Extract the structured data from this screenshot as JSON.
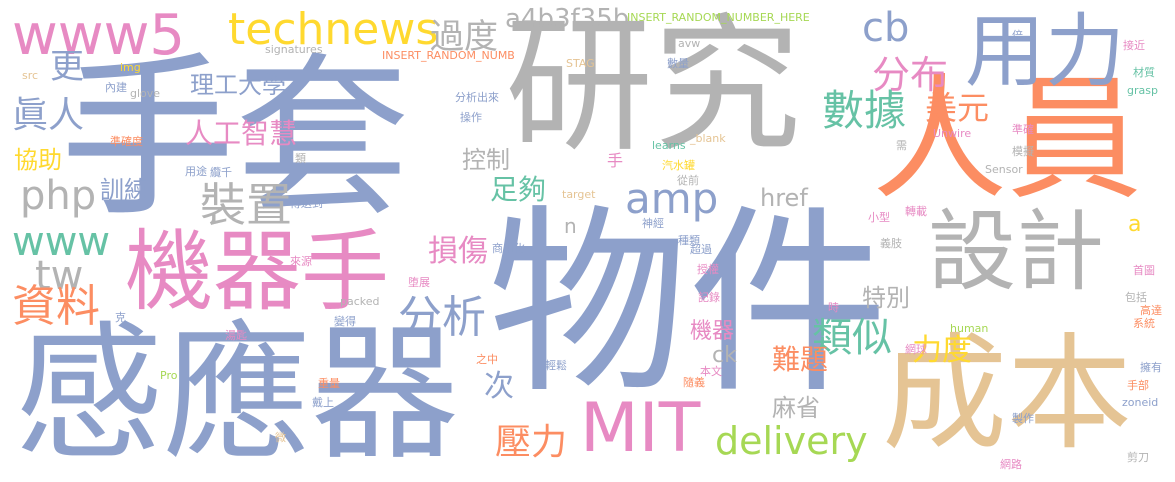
{
  "words": [
    {
      "text": "手套",
      "color": "#8da0cb"
    },
    {
      "text": "研究",
      "color": "#b3b3b3"
    },
    {
      "text": "物件",
      "color": "#8da0cb"
    },
    {
      "text": "感應器",
      "color": "#8da0cb"
    },
    {
      "text": "人員",
      "color": "#fc8d62"
    },
    {
      "text": "成本",
      "color": "#e5c494"
    },
    {
      "text": "機器手",
      "color": "#e78ac3"
    },
    {
      "text": "設計",
      "color": "#b3b3b3"
    },
    {
      "text": "用力",
      "color": "#8da0cb"
    },
    {
      "text": "www5",
      "color": "#e78ac3"
    },
    {
      "text": "technews",
      "color": "#ffd92f"
    },
    {
      "text": "MIT",
      "color": "#e78ac3"
    },
    {
      "text": "delivery",
      "color": "#a6d854"
    },
    {
      "text": "amp",
      "color": "#8da0cb"
    },
    {
      "text": "php",
      "color": "#b3b3b3"
    },
    {
      "text": "www",
      "color": "#66c2a5"
    },
    {
      "text": "tw",
      "color": "#b3b3b3"
    },
    {
      "text": "cb",
      "color": "#8da0cb"
    },
    {
      "text": "a4b3f35b",
      "color": "#b3b3b3"
    },
    {
      "text": "過度",
      "color": "#b3b3b3"
    },
    {
      "text": "分布",
      "color": "#e78ac3"
    },
    {
      "text": "數據",
      "color": "#66c2a5"
    },
    {
      "text": "美元",
      "color": "#fc8d62"
    },
    {
      "text": "理工大學",
      "color": "#8da0cb"
    },
    {
      "text": "人工智慧",
      "color": "#e78ac3"
    },
    {
      "text": "裝置",
      "color": "#b3b3b3"
    },
    {
      "text": "資料",
      "color": "#fc8d62"
    },
    {
      "text": "更",
      "color": "#8da0cb"
    },
    {
      "text": "眞人",
      "color": "#8da0cb"
    },
    {
      "text": "協助",
      "color": "#ffd92f"
    },
    {
      "text": "訓練",
      "color": "#8da0cb"
    },
    {
      "text": "控制",
      "color": "#b3b3b3"
    },
    {
      "text": "足夠",
      "color": "#66c2a5"
    },
    {
      "text": "href",
      "color": "#b3b3b3"
    },
    {
      "text": "分析",
      "color": "#8da0cb"
    },
    {
      "text": "損傷",
      "color": "#e78ac3"
    },
    {
      "text": "特別",
      "color": "#b3b3b3"
    },
    {
      "text": "類似",
      "color": "#66c2a5"
    },
    {
      "text": "力度",
      "color": "#ffd92f"
    },
    {
      "text": "難題",
      "color": "#fc8d62"
    },
    {
      "text": "麻省",
      "color": "#b3b3b3"
    },
    {
      "text": "壓力",
      "color": "#fc8d62"
    },
    {
      "text": "機器",
      "color": "#e78ac3"
    },
    {
      "text": "次",
      "color": "#8da0cb"
    },
    {
      "text": "ck",
      "color": "#b3b3b3"
    },
    {
      "text": "n",
      "color": "#b3b3b3"
    },
    {
      "text": "手",
      "color": "#e78ac3"
    },
    {
      "text": "a",
      "color": "#ffd92f"
    },
    {
      "text": "INSERT_RANDOM_NUMBER_HERE",
      "color": "#a6d854"
    },
    {
      "text": "INSERT_RANDOM_NUMB",
      "color": "#fc8d62"
    },
    {
      "text": "signatures",
      "color": "#b3b3b3"
    },
    {
      "text": "STAG",
      "color": "#e5c494"
    },
    {
      "text": "avw",
      "color": "#b3b3b3"
    },
    {
      "text": "src",
      "color": "#e5c494"
    },
    {
      "text": "img",
      "color": "#ffd92f"
    },
    {
      "text": "內建",
      "color": "#8da0cb"
    },
    {
      "text": "glove",
      "color": "#b3b3b3"
    },
    {
      "text": "準確度",
      "color": "#fc8d62"
    },
    {
      "text": "分析出來",
      "color": "#8da0cb"
    },
    {
      "text": "操作",
      "color": "#8da0cb"
    },
    {
      "text": "learns",
      "color": "#66c2a5"
    },
    {
      "text": "_blank",
      "color": "#e5c494"
    },
    {
      "text": "target",
      "color": "#e5c494"
    },
    {
      "text": "用途",
      "color": "#8da0cb"
    },
    {
      "text": "類",
      "color": "#b3b3b3"
    },
    {
      "text": "纜千",
      "color": "#8da0cb"
    },
    {
      "text": "傳送到",
      "color": "#8da0cb"
    },
    {
      "text": "商用化",
      "color": "#8da0cb"
    },
    {
      "text": "汽水罐",
      "color": "#ffd92f"
    },
    {
      "text": "從前",
      "color": "#b3b3b3"
    },
    {
      "text": "神經",
      "color": "#8da0cb"
    },
    {
      "text": "種類",
      "color": "#8da0cb"
    },
    {
      "text": "超過",
      "color": "#8da0cb"
    },
    {
      "text": "授權",
      "color": "#e78ac3"
    },
    {
      "text": "記錄",
      "color": "#e78ac3"
    },
    {
      "text": "來源",
      "color": "#e78ac3"
    },
    {
      "text": "堕展",
      "color": "#e78ac3"
    },
    {
      "text": "packed",
      "color": "#b3b3b3"
    },
    {
      "text": "湯匙",
      "color": "#e78ac3"
    },
    {
      "text": "變得",
      "color": "#8da0cb"
    },
    {
      "text": "克",
      "color": "#8da0cb"
    },
    {
      "text": "Pro",
      "color": "#a6d854"
    },
    {
      "text": "之中",
      "color": "#fc8d62"
    },
    {
      "text": "輕鬆",
      "color": "#8da0cb"
    },
    {
      "text": "本文",
      "color": "#e78ac3"
    },
    {
      "text": "隨義",
      "color": "#fc8d62"
    },
    {
      "text": "重量",
      "color": "#fc8d62"
    },
    {
      "text": "戴上",
      "color": "#8da0cb"
    },
    {
      "text": "微",
      "color": "#e5c494"
    },
    {
      "text": "數量",
      "color": "#8da0cb"
    },
    {
      "text": "倍",
      "color": "#8da0cb"
    },
    {
      "text": "接近",
      "color": "#e78ac3"
    },
    {
      "text": "grasp",
      "color": "#66c2a5"
    },
    {
      "text": "材質",
      "color": "#66c2a5"
    },
    {
      "text": "準確",
      "color": "#e78ac3"
    },
    {
      "text": "Unwire",
      "color": "#e78ac3"
    },
    {
      "text": "模擬",
      "color": "#b3b3b3"
    },
    {
      "text": "需",
      "color": "#b3b3b3"
    },
    {
      "text": "Sensor",
      "color": "#b3b3b3"
    },
    {
      "text": "小型",
      "color": "#e78ac3"
    },
    {
      "text": "轉載",
      "color": "#e78ac3"
    },
    {
      "text": "義肢",
      "color": "#b3b3b3"
    },
    {
      "text": "首圖",
      "color": "#e78ac3"
    },
    {
      "text": "包括",
      "color": "#b3b3b3"
    },
    {
      "text": "高達",
      "color": "#fc8d62"
    },
    {
      "text": "系統",
      "color": "#fc8d62"
    },
    {
      "text": "時",
      "color": "#e78ac3"
    },
    {
      "text": "human",
      "color": "#a6d854"
    },
    {
      "text": "網球",
      "color": "#e78ac3"
    },
    {
      "text": "擁有",
      "color": "#8da0cb"
    },
    {
      "text": "手部",
      "color": "#fc8d62"
    },
    {
      "text": "zoneid",
      "color": "#8da0cb"
    },
    {
      "text": "製作",
      "color": "#8da0cb"
    },
    {
      "text": "網路",
      "color": "#e78ac3"
    },
    {
      "text": "剪刀",
      "color": "#b3b3b3"
    }
  ]
}
